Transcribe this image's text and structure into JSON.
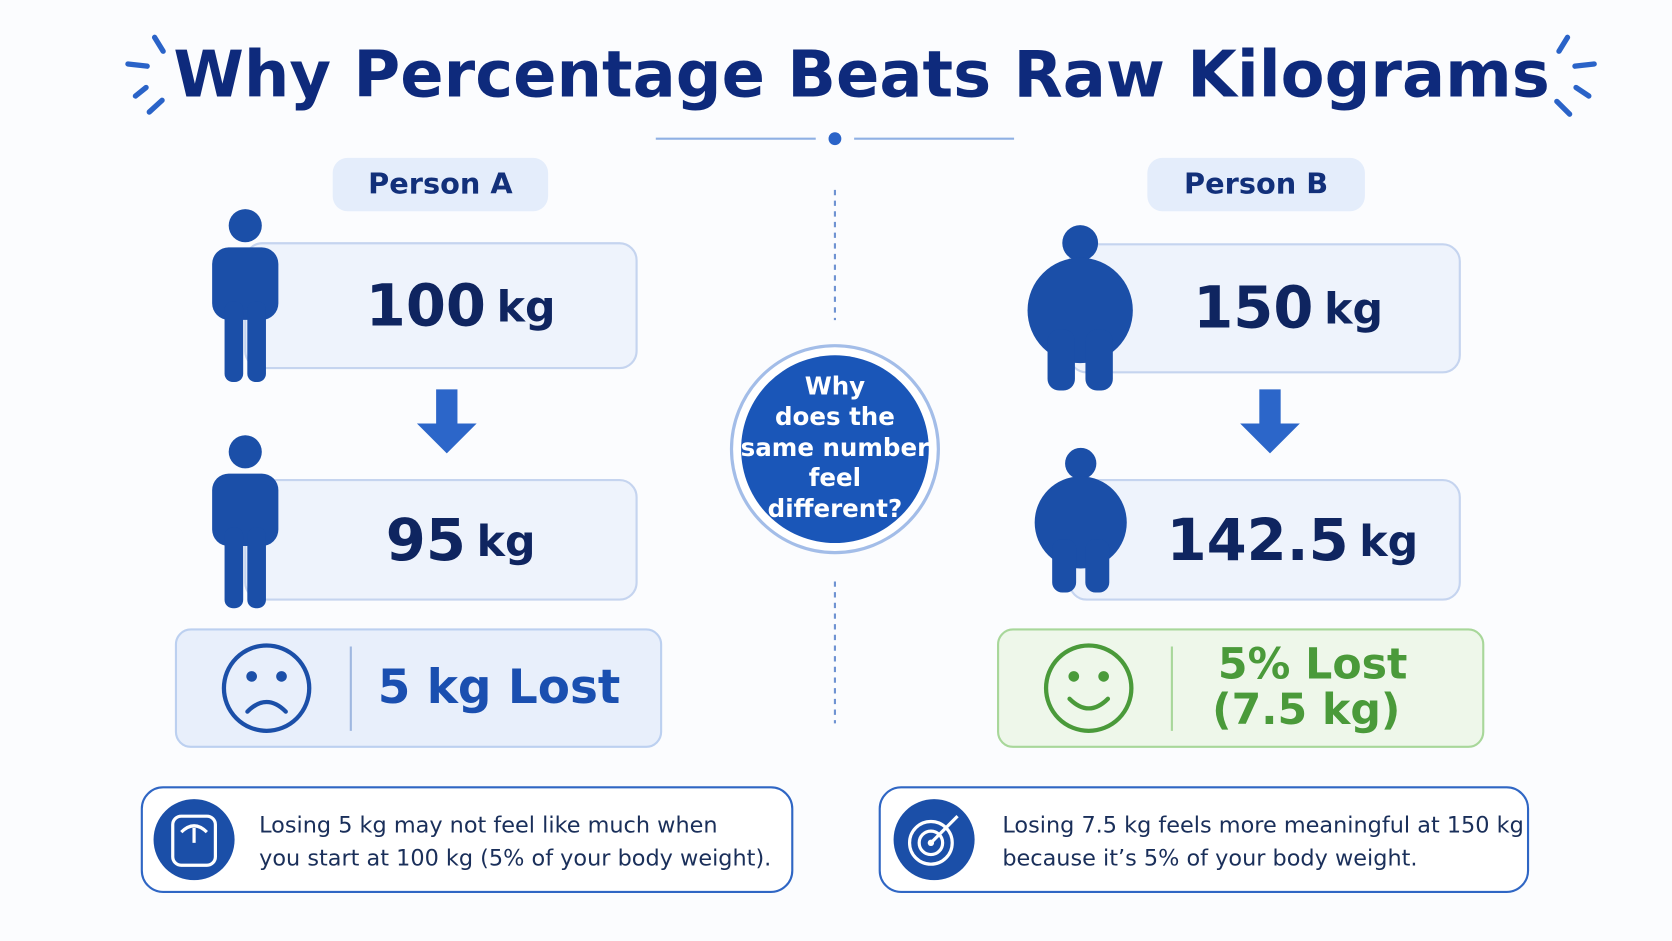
{
  "title": "Why Percentage Beats Raw Kilograms",
  "center_question": {
    "lines": [
      "Why",
      "does the",
      "same number",
      "feel",
      "different?"
    ]
  },
  "persons": [
    {
      "label": "Person A",
      "start": {
        "value": "100",
        "unit": "kg"
      },
      "end": {
        "value": "95",
        "unit": "kg"
      },
      "result": {
        "lines": [
          "5 kg Lost"
        ]
      },
      "note": {
        "lines": [
          "Losing 5 kg may not feel like much when",
          "you start at 100 kg (5% of your body weight)."
        ]
      }
    },
    {
      "label": "Person B",
      "start": {
        "value": "150",
        "unit": "kg"
      },
      "end": {
        "value": "142.5",
        "unit": "kg"
      },
      "result": {
        "lines": [
          "5% Lost",
          "(7.5 kg)"
        ]
      },
      "note": {
        "lines": [
          "Losing 7.5 kg feels more meaningful at 150 kg",
          "because it’s 5% of your body weight."
        ]
      }
    }
  ]
}
